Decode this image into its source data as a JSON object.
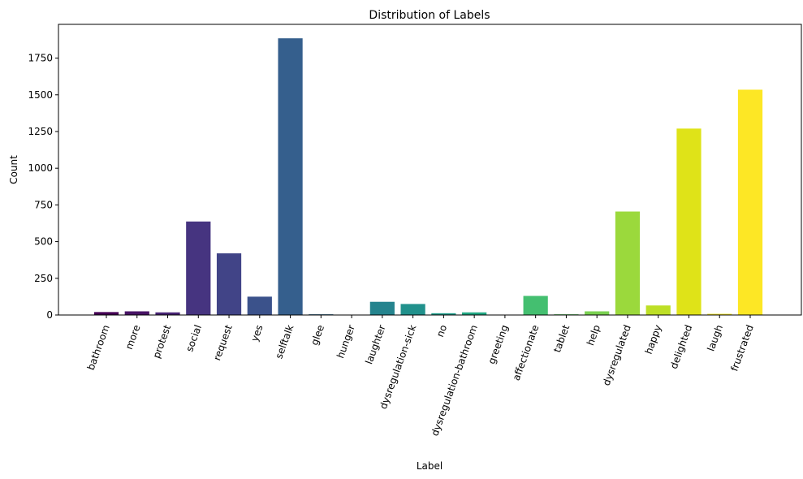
{
  "chart_data": {
    "type": "bar",
    "title": "Distribution of Labels",
    "xlabel": "Label",
    "ylabel": "Count",
    "categories": [
      "bathroom",
      "more",
      "protest",
      "social",
      "request",
      "yes",
      "selftalk",
      "glee",
      "hunger",
      "laughter",
      "dysregulation-sick",
      "no",
      "dysregulation-bathroom",
      "greeting",
      "affectionate",
      "tablet",
      "help",
      "dysregulated",
      "happy",
      "delighted",
      "laugh",
      "frustrated"
    ],
    "values": [
      20,
      25,
      18,
      637,
      420,
      125,
      1885,
      5,
      2,
      90,
      75,
      12,
      18,
      2,
      130,
      5,
      25,
      705,
      65,
      1270,
      8,
      1535
    ],
    "colors": [
      "#440154",
      "#471365",
      "#482475",
      "#463480",
      "#414487",
      "#3b528b",
      "#355f8d",
      "#2f6c8e",
      "#2a788e",
      "#25848e",
      "#21918c",
      "#1e9c89",
      "#22a884",
      "#2fb47c",
      "#44bf70",
      "#5ec962",
      "#7ad151",
      "#9bd93c",
      "#bddf26",
      "#dfe318",
      "#fde725",
      "#fde725"
    ],
    "ylim": [
      0,
      1980
    ],
    "yticks": [
      0,
      250,
      500,
      750,
      1000,
      1250,
      1500,
      1750
    ],
    "grid": false,
    "legend": "none"
  }
}
